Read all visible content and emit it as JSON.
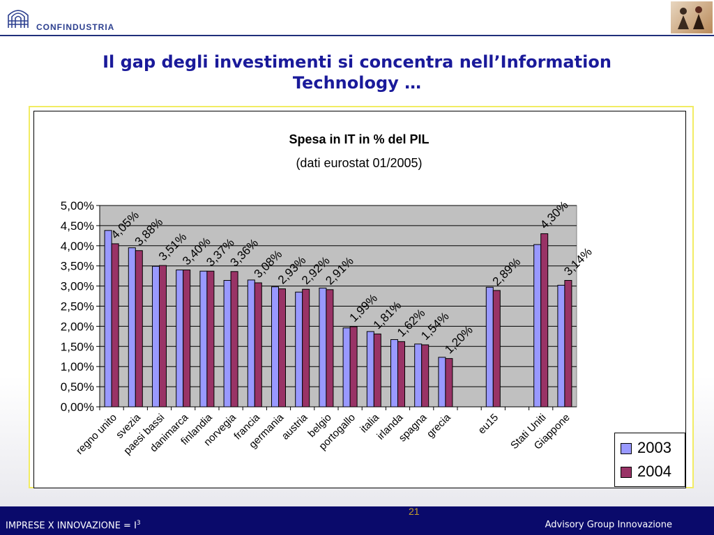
{
  "header": {
    "logo_text": "CONFINDUSTRIA"
  },
  "slide": {
    "title_line1": "Il gap degli investimenti si concentra nell’Information",
    "title_line2": "Technology …"
  },
  "chart_data": {
    "type": "bar",
    "title": "Spesa in IT in % del PIL",
    "subtitle": "(dati eurostat 01/2005)",
    "categories": [
      "regno unito",
      "svezia",
      "paesi bassi",
      "danimarca",
      "finlandia",
      "norvegia",
      "francia",
      "germania",
      "austria",
      "belgio",
      "portogallo",
      "italia",
      "irlanda",
      "spagna",
      "grecia",
      "",
      "eu15",
      "",
      "Stati Uniti",
      "Giappone"
    ],
    "series": [
      {
        "name": "2003",
        "color": "#9999ff",
        "values": [
          4.38,
          3.95,
          3.49,
          3.4,
          3.37,
          3.14,
          3.15,
          2.98,
          2.85,
          2.95,
          1.96,
          1.87,
          1.67,
          1.56,
          1.23,
          null,
          2.97,
          null,
          4.03,
          3.02
        ]
      },
      {
        "name": "2004",
        "color": "#993366",
        "values": [
          4.05,
          3.88,
          3.51,
          3.4,
          3.37,
          3.36,
          3.08,
          2.93,
          2.92,
          2.91,
          1.99,
          1.81,
          1.62,
          1.54,
          1.2,
          null,
          2.89,
          null,
          4.3,
          3.14
        ]
      }
    ],
    "data_labels": [
      "4,05%",
      "3,88%",
      "3,51%",
      "3,40%",
      "3,37%",
      "3,36%",
      "3,08%",
      "2,93%",
      "2,92%",
      "2,91%",
      "1,99%",
      "1,81%",
      "1,62%",
      "1,54%",
      "1,20%",
      "",
      "2,89%",
      "",
      "4,30%",
      "3,14%"
    ],
    "y_ticks": [
      "0,00%",
      "0,50%",
      "1,00%",
      "1,50%",
      "2,00%",
      "2,50%",
      "3,00%",
      "3,50%",
      "4,00%",
      "4,50%",
      "5,00%"
    ],
    "ylim": [
      0,
      5
    ],
    "grid": true,
    "legend_position": "bottom-right",
    "plot_background": "#c0c0c0"
  },
  "legend": {
    "items": [
      {
        "label": "2003",
        "color": "#9999ff"
      },
      {
        "label": "2004",
        "color": "#993366"
      }
    ]
  },
  "footer": {
    "left_prefix": "IMPRESE X INNOVAZIONE = I",
    "left_sup": "3",
    "right": "Advisory Group Innovazione",
    "page_number": "21"
  }
}
